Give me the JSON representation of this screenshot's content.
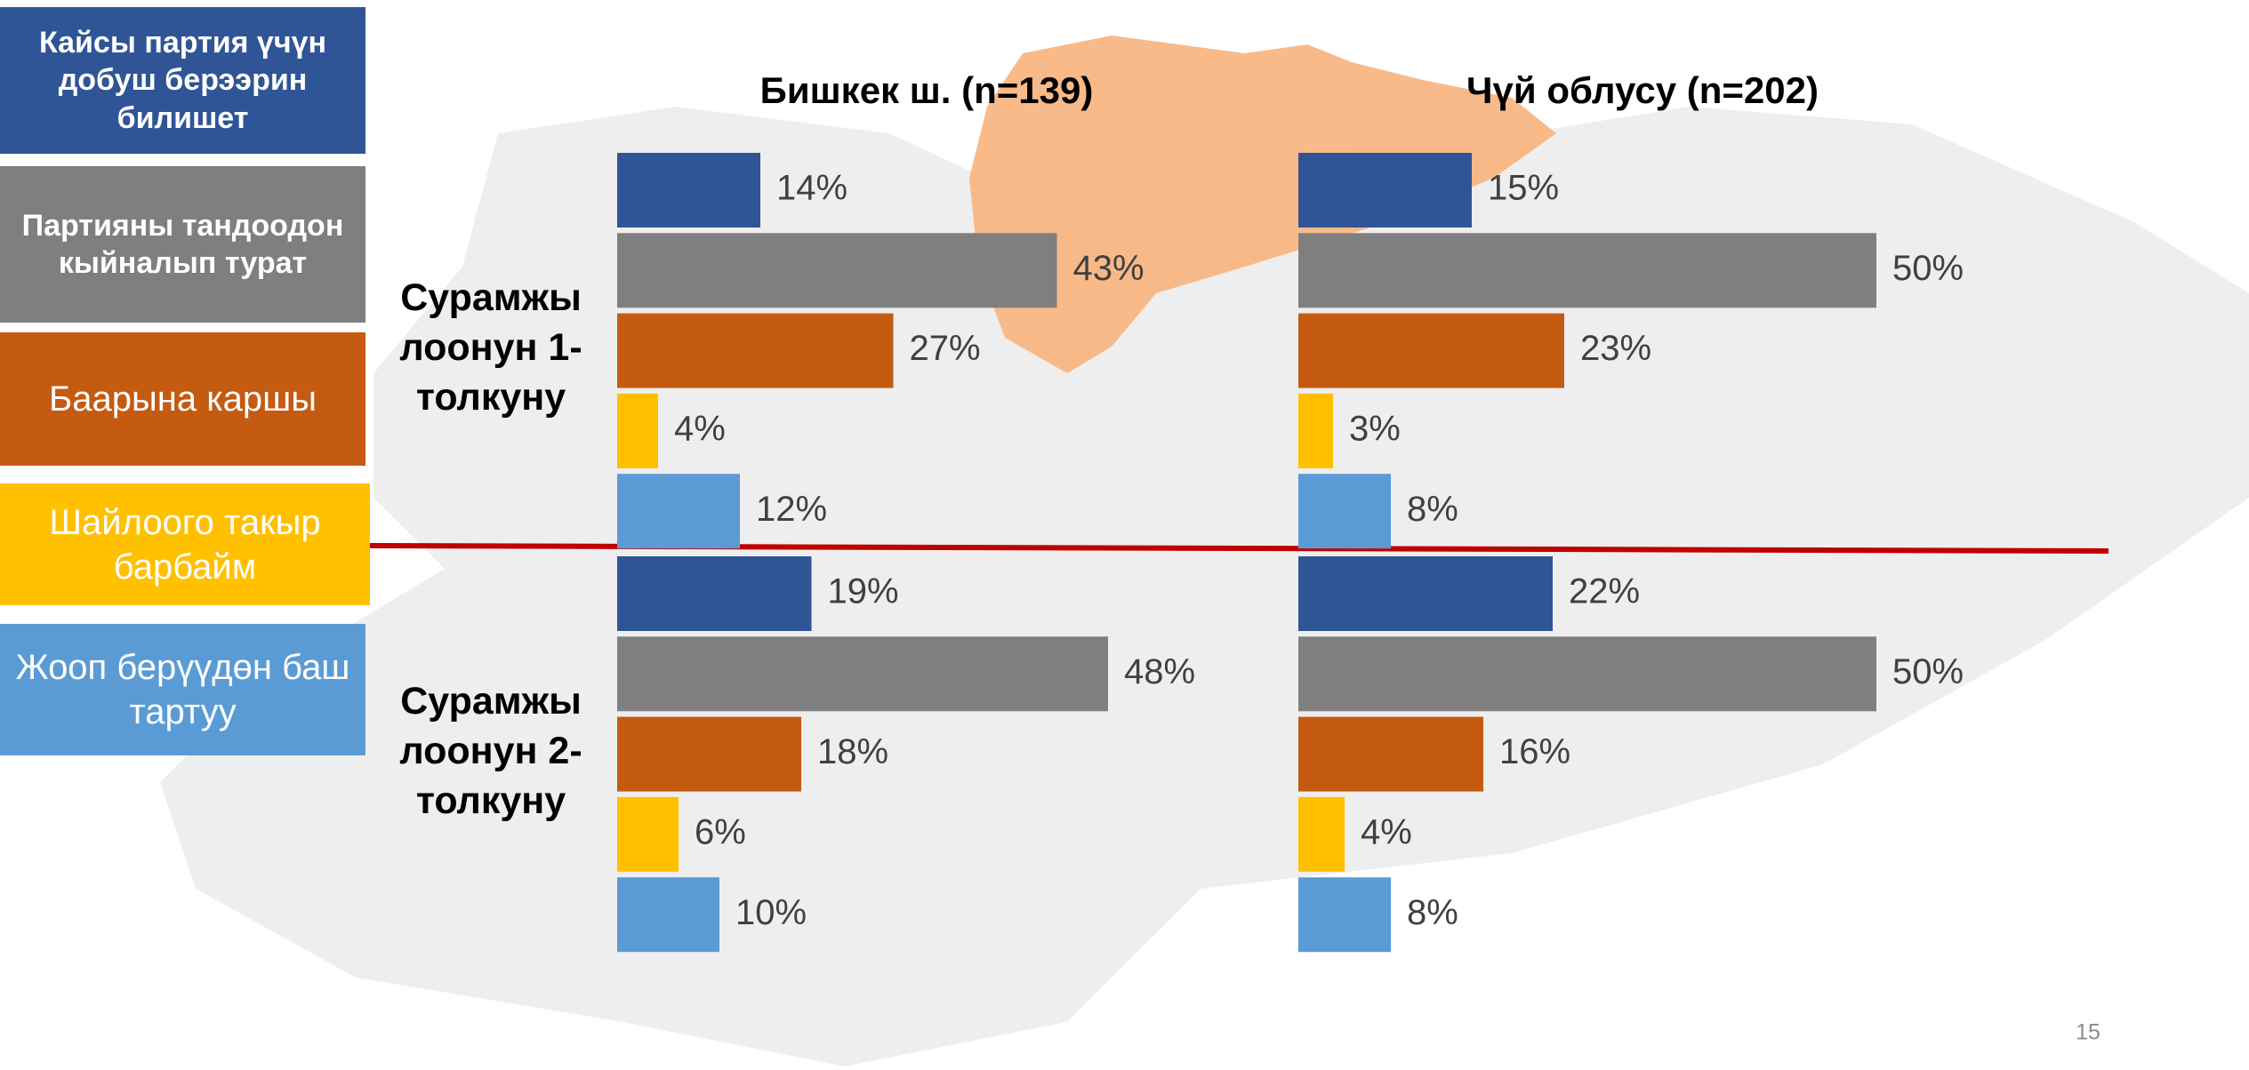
{
  "chart_data": {
    "type": "bar",
    "orientation": "horizontal",
    "categories": [
      "Сурамжы\nлоонун 1-\nтолкуну",
      "Сурамжы\nлоонун 2-\nтолкуну"
    ],
    "series": [
      {
        "name": "Кайсы партия үчүн добуш берээрин билишет",
        "color": "#2f5597"
      },
      {
        "name": "Партияны тандоодон кыйналып турат",
        "color": "#7f7f7f"
      },
      {
        "name": "Баарына каршы",
        "color": "#c55a11"
      },
      {
        "name": "Шайлоого такыр барбайм",
        "color": "#ffc000"
      },
      {
        "name": "Жооп берүүдөн баш тартуу",
        "color": "#5b9bd5"
      }
    ],
    "panels": [
      {
        "title": "Бишкек ш. (n=139)",
        "series": [
          {
            "values": [
              14,
              19
            ],
            "value_labels": [
              "14%",
              "19%"
            ]
          },
          {
            "values": [
              43,
              48
            ],
            "value_labels": [
              "43%",
              "48%"
            ]
          },
          {
            "values": [
              27,
              18
            ],
            "value_labels": [
              "27%",
              "18%"
            ]
          },
          {
            "values": [
              4,
              6
            ],
            "value_labels": [
              "4%",
              "6%"
            ]
          },
          {
            "values": [
              12,
              10
            ],
            "value_labels": [
              "12%",
              "10%"
            ]
          }
        ]
      },
      {
        "title": "Чүй облусу (n=202)",
        "series": [
          {
            "values": [
              15,
              22
            ],
            "value_labels": [
              "15%",
              "22%"
            ]
          },
          {
            "values": [
              50,
              50
            ],
            "value_labels": [
              "50%",
              "50%"
            ]
          },
          {
            "values": [
              23,
              16
            ],
            "value_labels": [
              "23%",
              "16%"
            ]
          },
          {
            "values": [
              3,
              4
            ],
            "value_labels": [
              "3%",
              "4%"
            ]
          },
          {
            "values": [
              8,
              8
            ],
            "value_labels": [
              "8%",
              "8%"
            ]
          }
        ]
      }
    ],
    "page_number": "15"
  }
}
